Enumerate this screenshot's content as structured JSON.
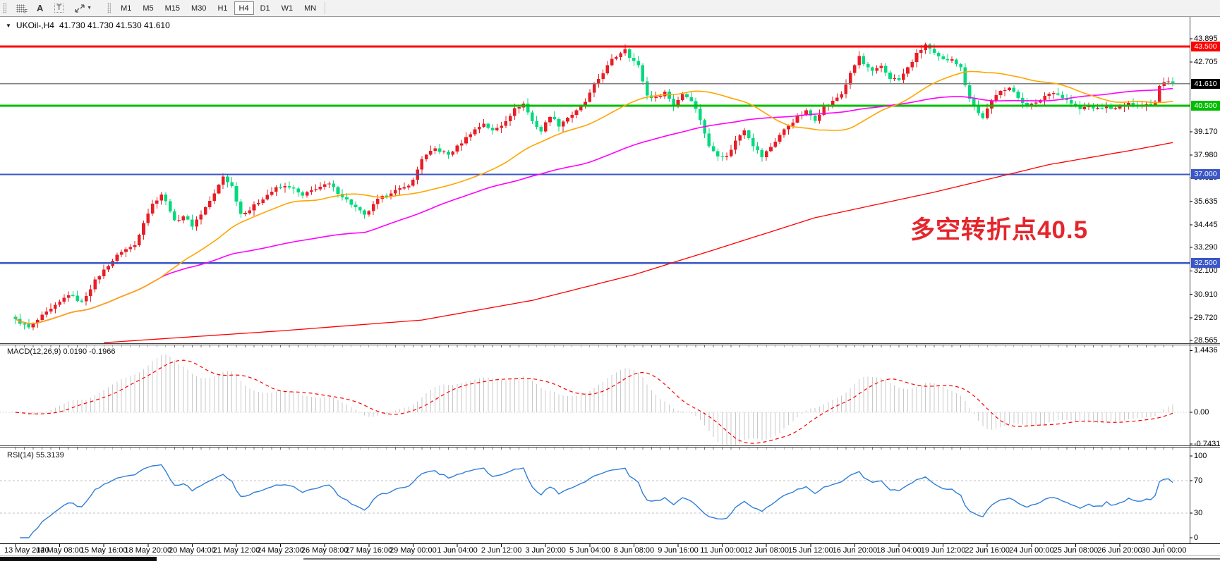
{
  "toolbar": {
    "icon_grid_letter": "F",
    "icon_a": "A",
    "icon_t": "T",
    "timeframes": [
      "M1",
      "M5",
      "M15",
      "M30",
      "H1",
      "H4",
      "D1",
      "W1",
      "MN"
    ],
    "active_timeframe": "H4"
  },
  "header": {
    "symbol": "UKOil-,H4",
    "ohlc": "41.730 41.730 41.530 41.610"
  },
  "annotation": {
    "text": "多空转折点40.5",
    "color": "#e4262c"
  },
  "macd": {
    "label": "MACD(12,26,9) 0.0190 -0.1966",
    "scale": [
      {
        "text": "1.4436",
        "value": 1.4436
      },
      {
        "text": "0.00",
        "value": 0
      },
      {
        "text": "-0.7431",
        "value": -0.7431
      }
    ]
  },
  "rsi": {
    "label": "RSI(14) 55.3139",
    "scale": [
      {
        "text": "100",
        "value": 100
      },
      {
        "text": "70",
        "value": 70
      },
      {
        "text": "30",
        "value": 30
      },
      {
        "text": "0",
        "value": 0
      }
    ],
    "guides": [
      70,
      30
    ]
  },
  "axis": {
    "price_ticks": [
      {
        "text": "43.895",
        "value": 43.895
      },
      {
        "text": "42.705",
        "value": 42.705
      },
      {
        "text": "39.170",
        "value": 39.17
      },
      {
        "text": "37.980",
        "value": 37.98
      },
      {
        "text": "36.825",
        "value": 36.825
      },
      {
        "text": "35.635",
        "value": 35.635
      },
      {
        "text": "34.445",
        "value": 34.445
      },
      {
        "text": "33.290",
        "value": 33.29
      },
      {
        "text": "32.100",
        "value": 32.1
      },
      {
        "text": "30.910",
        "value": 30.91
      },
      {
        "text": "29.720",
        "value": 29.72
      },
      {
        "text": "28.565",
        "value": 28.565
      }
    ],
    "time_labels": [
      "13 May 2020",
      "14 May 08:00",
      "15 May 16:00",
      "18 May 20:00",
      "20 May 04:00",
      "21 May 12:00",
      "24 May 23:00",
      "26 May 08:00",
      "27 May 16:00",
      "29 May 00:00",
      "1 Jun 04:00",
      "2 Jun 12:00",
      "3 Jun 20:00",
      "5 Jun 04:00",
      "8 Jun 08:00",
      "9 Jun 16:00",
      "11 Jun 00:00",
      "12 Jun 08:00",
      "15 Jun 12:00",
      "16 Jun 20:00",
      "18 Jun 04:00",
      "19 Jun 12:00",
      "22 Jun 16:00",
      "24 Jun 00:00",
      "25 Jun 08:00",
      "26 Jun 20:00",
      "30 Jun 00:00"
    ]
  },
  "levels": [
    {
      "label": "43.500",
      "price": 43.5,
      "color": "#fe0000",
      "width": 3,
      "badge": "#fe0000"
    },
    {
      "label": "40.500",
      "price": 40.5,
      "color": "#00bd00",
      "width": 3,
      "badge": "#00bd00"
    },
    {
      "label": "37.000",
      "price": 37.0,
      "color": "#3a56c8",
      "width": 2.4,
      "badge": "#3a56c8"
    },
    {
      "label": "32.500",
      "price": 32.5,
      "color": "#3a56c8",
      "width": 2.4,
      "badge": "#3a56c8"
    },
    {
      "label": "41.610",
      "price": 41.61,
      "color": "#808080",
      "width": 1.2,
      "badge": "#000000"
    }
  ],
  "colors": {
    "candle_up": "#e81d25",
    "candle_down": "#00da7c",
    "ma_orange": "#ffa500",
    "ma_magenta": "#ff00ff",
    "ma_red": "#fe0000",
    "macd_hist": "#c9c9c9",
    "macd_signal": "#fe0000",
    "rsi_line": "#2f7ed8",
    "guide_gray": "#c0c0c0"
  },
  "chart_data": {
    "type": "candlestick",
    "symbol": "UKOil-",
    "timeframe": "H4",
    "last_ohlc": {
      "open": 41.73,
      "high": 41.73,
      "low": 41.53,
      "close": 41.61
    },
    "price_axis": {
      "min": 28.565,
      "max": 43.895
    },
    "candle_count": 263,
    "close_waypoints": [
      [
        0,
        29.6
      ],
      [
        3,
        29.2
      ],
      [
        6,
        29.8
      ],
      [
        9,
        30.3
      ],
      [
        12,
        30.9
      ],
      [
        15,
        30.5
      ],
      [
        18,
        31.6
      ],
      [
        21,
        32.4
      ],
      [
        24,
        33.1
      ],
      [
        27,
        33.4
      ],
      [
        29,
        34.6
      ],
      [
        31,
        35.5
      ],
      [
        33,
        36.0
      ],
      [
        35,
        35.2
      ],
      [
        36,
        34.6
      ],
      [
        38,
        34.9
      ],
      [
        40,
        34.4
      ],
      [
        42,
        35.0
      ],
      [
        45,
        36.0
      ],
      [
        47,
        36.9
      ],
      [
        49,
        36.4
      ],
      [
        51,
        35.0
      ],
      [
        53,
        35.2
      ],
      [
        56,
        35.8
      ],
      [
        59,
        36.3
      ],
      [
        62,
        36.4
      ],
      [
        65,
        35.9
      ],
      [
        68,
        36.3
      ],
      [
        71,
        36.5
      ],
      [
        74,
        35.9
      ],
      [
        77,
        35.3
      ],
      [
        79,
        34.9
      ],
      [
        82,
        35.7
      ],
      [
        85,
        36.1
      ],
      [
        88,
        36.3
      ],
      [
        90,
        36.7
      ],
      [
        92,
        37.8
      ],
      [
        95,
        38.3
      ],
      [
        98,
        38.0
      ],
      [
        100,
        38.4
      ],
      [
        103,
        39.1
      ],
      [
        106,
        39.6
      ],
      [
        108,
        39.2
      ],
      [
        110,
        39.5
      ],
      [
        113,
        40.3
      ],
      [
        115,
        40.6
      ],
      [
        117,
        39.7
      ],
      [
        119,
        39.2
      ],
      [
        121,
        40.0
      ],
      [
        123,
        39.5
      ],
      [
        125,
        39.9
      ],
      [
        127,
        40.2
      ],
      [
        129,
        40.7
      ],
      [
        131,
        41.5
      ],
      [
        133,
        42.2
      ],
      [
        135,
        42.8
      ],
      [
        137,
        43.2
      ],
      [
        138,
        43.4
      ],
      [
        139,
        43.0
      ],
      [
        141,
        42.5
      ],
      [
        143,
        41.0
      ],
      [
        145,
        40.9
      ],
      [
        147,
        41.2
      ],
      [
        149,
        40.5
      ],
      [
        151,
        41.1
      ],
      [
        153,
        40.8
      ],
      [
        155,
        39.8
      ],
      [
        157,
        38.4
      ],
      [
        159,
        38.0
      ],
      [
        161,
        37.9
      ],
      [
        163,
        38.7
      ],
      [
        165,
        39.3
      ],
      [
        167,
        38.5
      ],
      [
        169,
        37.9
      ],
      [
        171,
        38.4
      ],
      [
        173,
        39.0
      ],
      [
        175,
        39.5
      ],
      [
        177,
        39.9
      ],
      [
        179,
        40.2
      ],
      [
        181,
        39.8
      ],
      [
        183,
        40.4
      ],
      [
        185,
        40.7
      ],
      [
        187,
        41.1
      ],
      [
        189,
        42.1
      ],
      [
        191,
        43.0
      ],
      [
        192,
        42.6
      ],
      [
        194,
        42.2
      ],
      [
        196,
        42.5
      ],
      [
        198,
        41.9
      ],
      [
        200,
        41.8
      ],
      [
        202,
        42.4
      ],
      [
        204,
        43.1
      ],
      [
        206,
        43.6
      ],
      [
        208,
        43.1
      ],
      [
        210,
        42.8
      ],
      [
        212,
        42.9
      ],
      [
        214,
        42.4
      ],
      [
        215,
        41.6
      ],
      [
        216,
        40.9
      ],
      [
        218,
        40.1
      ],
      [
        219,
        39.9
      ],
      [
        221,
        40.7
      ],
      [
        223,
        41.3
      ],
      [
        225,
        41.4
      ],
      [
        227,
        40.9
      ],
      [
        229,
        40.5
      ],
      [
        231,
        40.6
      ],
      [
        233,
        41.0
      ],
      [
        235,
        41.2
      ],
      [
        237,
        40.9
      ],
      [
        239,
        40.6
      ],
      [
        241,
        40.3
      ],
      [
        243,
        40.5
      ],
      [
        245,
        40.3
      ],
      [
        247,
        40.5
      ],
      [
        249,
        40.3
      ],
      [
        251,
        40.5
      ],
      [
        253,
        40.6
      ],
      [
        255,
        40.5
      ],
      [
        257,
        40.6
      ],
      [
        258,
        40.7
      ],
      [
        259,
        41.5
      ],
      [
        260,
        41.7
      ],
      [
        261,
        41.75
      ],
      [
        262,
        41.61
      ]
    ],
    "moving_averages": {
      "orange_sma_period": 34,
      "magenta_sma_period": 80,
      "red_ma_waypoints": [
        [
          20,
          28.45
        ],
        [
          60,
          29.05
        ],
        [
          92,
          29.6
        ],
        [
          117,
          30.6
        ],
        [
          140,
          31.9
        ],
        [
          160,
          33.3
        ],
        [
          181,
          34.8
        ],
        [
          208,
          36.1
        ],
        [
          234,
          37.5
        ],
        [
          252,
          38.2
        ],
        [
          262,
          38.62
        ]
      ]
    },
    "macd_params": {
      "fast": 12,
      "slow": 26,
      "signal": 9,
      "current": 0.019,
      "current_signal": -0.1966,
      "scale_max": 1.4436,
      "scale_min": -0.7431
    },
    "rsi_params": {
      "period": 14,
      "current": 55.3139,
      "scale": [
        0,
        100
      ],
      "guides": [
        30,
        70
      ]
    }
  }
}
